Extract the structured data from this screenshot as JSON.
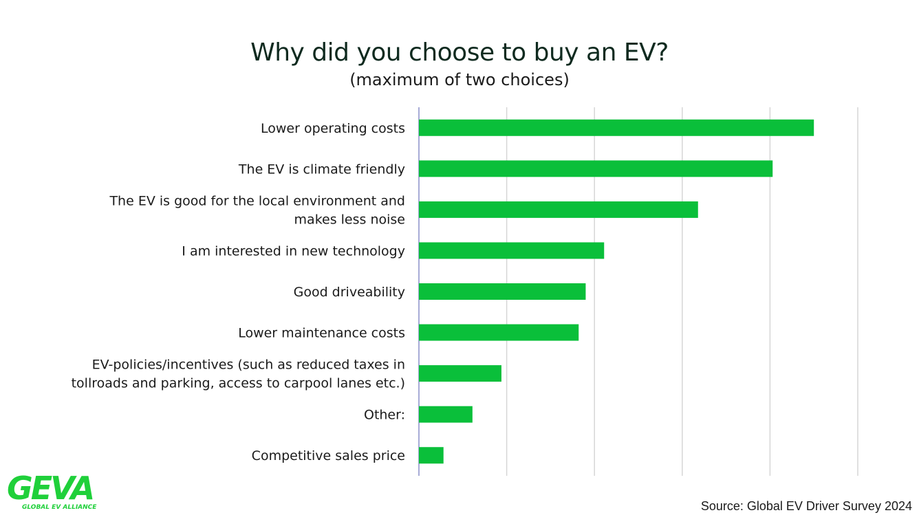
{
  "header": {
    "title": "Why did you choose to buy an EV?",
    "subtitle": "(maximum of two choices)"
  },
  "footer": {
    "source": "Source: Global EV Driver Survey 2024"
  },
  "logo": {
    "wordmark": "GEVA",
    "tagline": "GLOBAL EV ALLIANCE"
  },
  "colors": {
    "bar": "#0abf3a",
    "grid": "#d6d6d6",
    "axis": "#8a8fc8",
    "logo": "#1fd03a"
  },
  "chart_data": {
    "type": "bar",
    "orientation": "horizontal",
    "categories": [
      [
        "Lower operating costs"
      ],
      [
        "The EV is climate friendly"
      ],
      [
        "The EV is good for the local environment and",
        "makes less noise"
      ],
      [
        "I am interested in new technology"
      ],
      [
        "Good driveability"
      ],
      [
        "Lower maintenance costs"
      ],
      [
        "EV-policies/incentives (such as reduced taxes in",
        "tollroads and parking, access to carpool lanes etc.)"
      ],
      [
        "Other:"
      ],
      [
        "Competitive sales price"
      ]
    ],
    "values": [
      45,
      40.3,
      31.8,
      21.1,
      19,
      18.2,
      9.4,
      6.1,
      2.8
    ],
    "xlim": [
      0,
      50
    ],
    "grid_step": 10,
    "grid": true,
    "axis_tick_labels_shown": false,
    "legend": "none"
  }
}
